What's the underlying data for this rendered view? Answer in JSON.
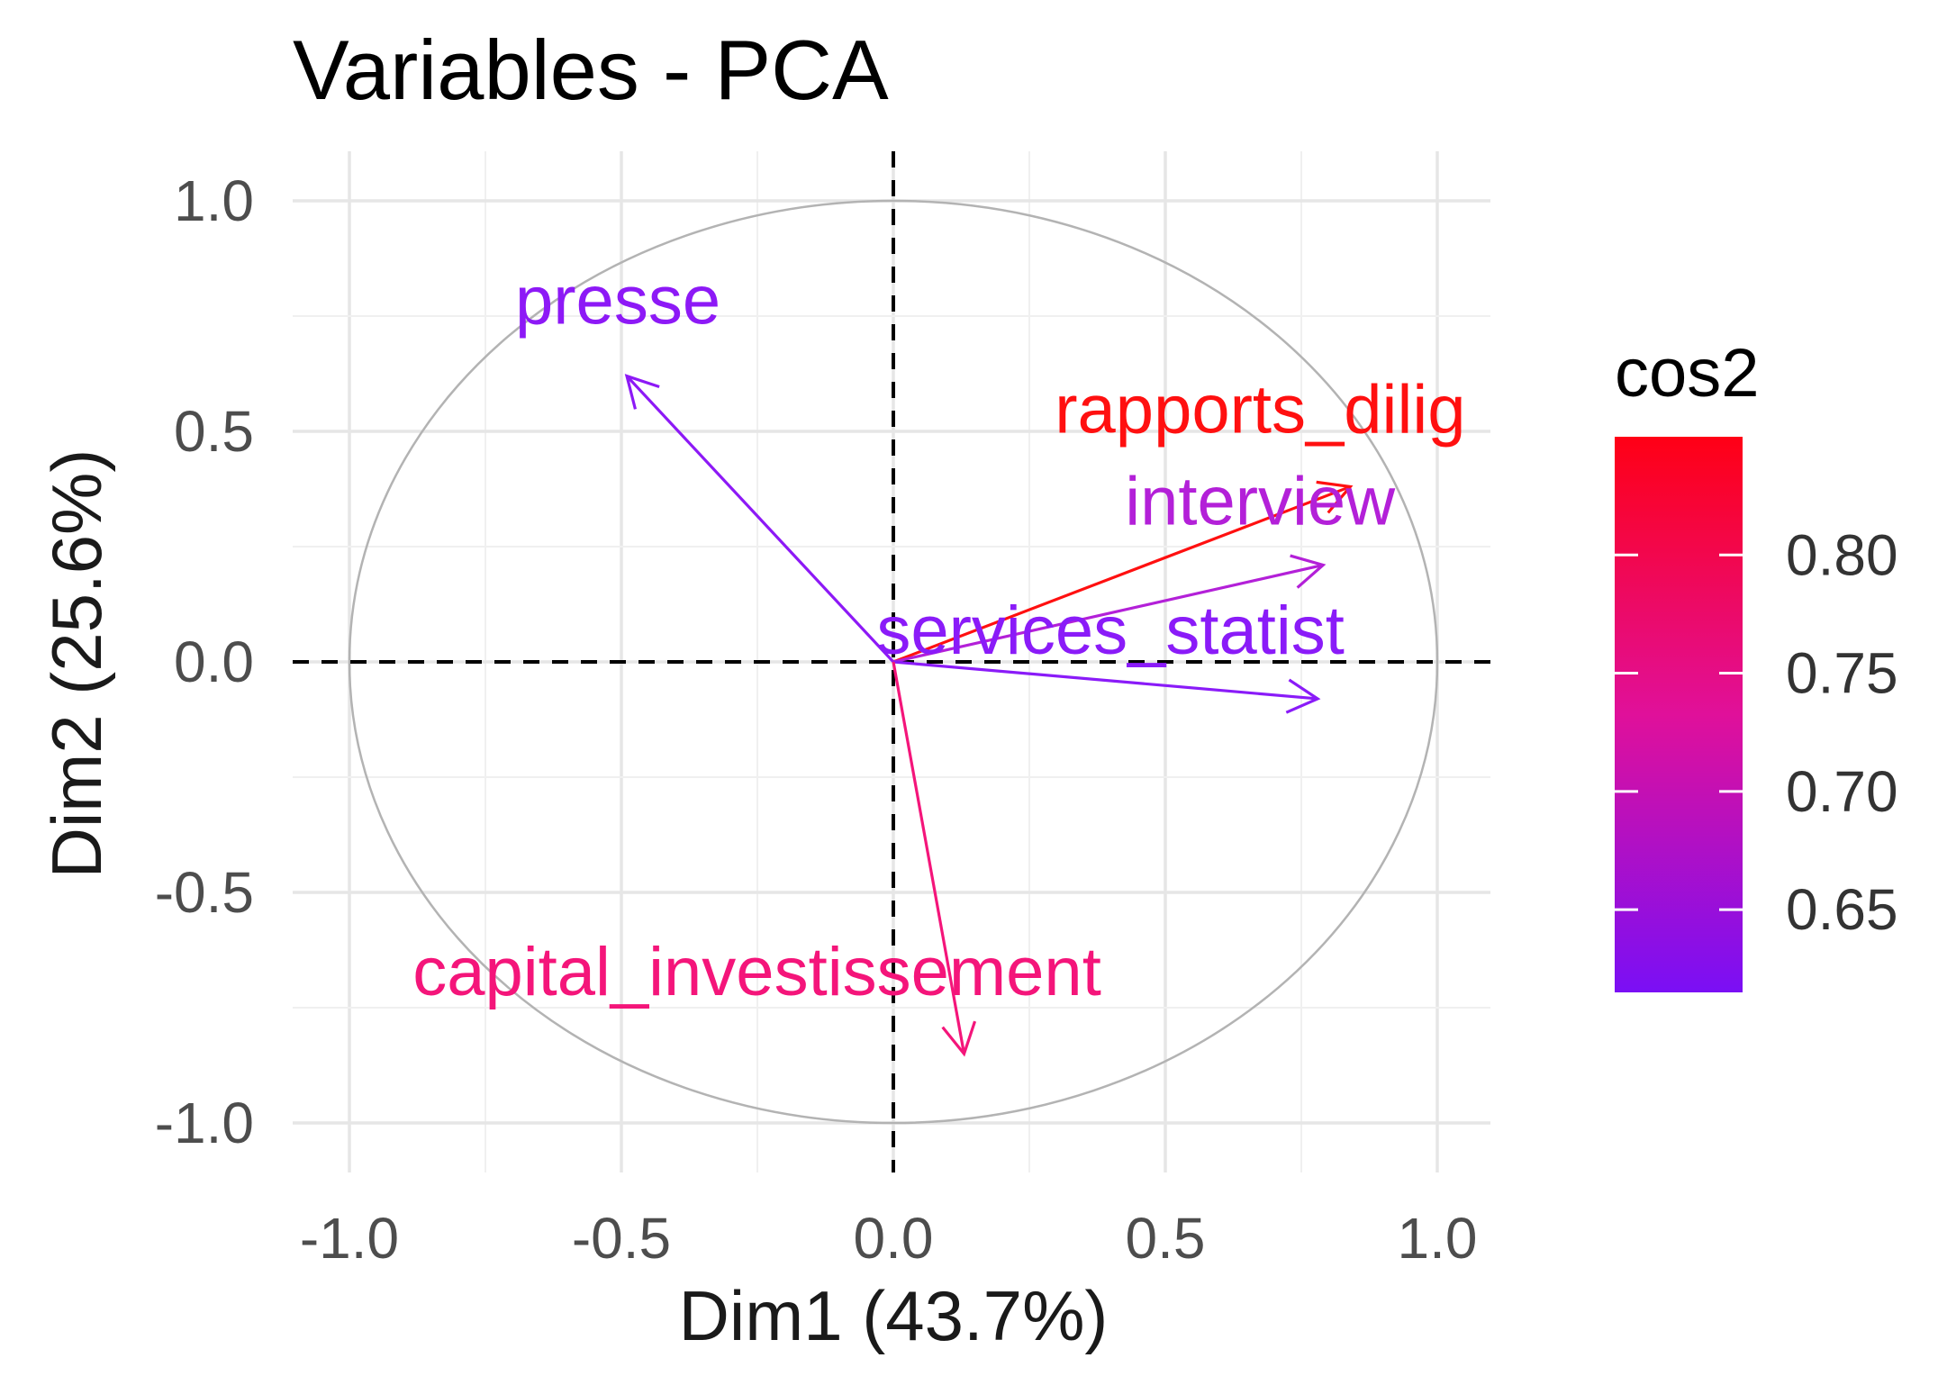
{
  "chart_data": {
    "type": "scatter",
    "title": "Variables - PCA",
    "xlabel": "Dim1 (43.7%)",
    "ylabel": "Dim2 (25.6%)",
    "xlim": [
      -1.1,
      1.1
    ],
    "ylim": [
      -1.1,
      1.1
    ],
    "x_ticks": [
      -1.0,
      -0.5,
      0.0,
      0.5,
      1.0
    ],
    "y_ticks": [
      -1.0,
      -0.5,
      0.0,
      0.5,
      1.0
    ],
    "x_tick_labels": [
      "-1.0",
      "-0.5",
      "0.0",
      "0.5",
      "1.0"
    ],
    "y_tick_labels": [
      "-1.0",
      "-0.5",
      "0.0",
      "0.5",
      "1.0"
    ],
    "grid": true,
    "unit_circle": true,
    "variables": [
      {
        "name": "presse",
        "x": -0.49,
        "y": 0.62,
        "cos2": 0.625,
        "color": "#8d19f6"
      },
      {
        "name": "rapports_dilig",
        "x": 0.84,
        "y": 0.38,
        "cos2": 0.85,
        "color": "#ff1010"
      },
      {
        "name": "interview",
        "x": 0.79,
        "y": 0.21,
        "cos2": 0.67,
        "color": "#b320d8"
      },
      {
        "name": "services_statist",
        "x": 0.78,
        "y": -0.08,
        "cos2": 0.62,
        "color": "#8a1bf8"
      },
      {
        "name": "capital_investissement",
        "x": 0.13,
        "y": -0.85,
        "cos2": 0.74,
        "color": "#f4157a"
      }
    ],
    "legend": {
      "title": "cos2",
      "placement": "right",
      "min": 0.615,
      "max": 0.85,
      "ticks": [
        0.65,
        0.7,
        0.75,
        0.8
      ],
      "tick_labels": [
        "0.65",
        "0.70",
        "0.75",
        "0.80"
      ],
      "low_color": "#7a0ff5",
      "mid_color": "#e0109a",
      "high_color": "#ff0015"
    }
  }
}
